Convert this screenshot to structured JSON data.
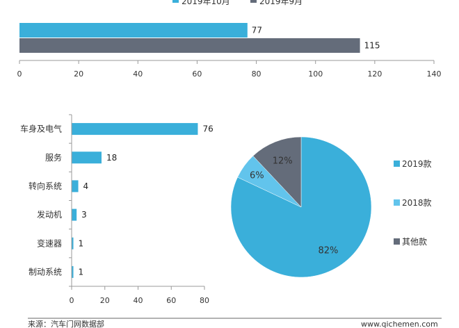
{
  "chart_data": [
    {
      "type": "bar",
      "orientation": "horizontal",
      "title": "",
      "series": [
        {
          "name": "2019年10月",
          "values": [
            77
          ],
          "color": "#3aafda"
        },
        {
          "name": "2019年9月",
          "values": [
            115
          ],
          "color": "#646c7a"
        }
      ],
      "xlim": [
        0,
        140
      ],
      "xticks": [
        0,
        20,
        40,
        60,
        80,
        100,
        120,
        140
      ],
      "legend": "top",
      "grid": false
    },
    {
      "type": "bar",
      "orientation": "horizontal",
      "categories": [
        "车身及电气",
        "服务",
        "转向系统",
        "发动机",
        "变速器",
        "制动系统"
      ],
      "series": [
        {
          "name": "",
          "values": [
            76,
            18,
            4,
            3,
            1,
            1
          ],
          "color": "#3aafda"
        }
      ],
      "xlim": [
        0,
        80
      ],
      "xticks": [
        0,
        20,
        40,
        60,
        80
      ],
      "grid": false
    },
    {
      "type": "pie",
      "slices": [
        {
          "label": "2019款",
          "value": 82,
          "text": "82%",
          "color": "#3aafda"
        },
        {
          "label": "2018款",
          "value": 6,
          "text": "6%",
          "color": "#62c4ec"
        },
        {
          "label": "其他款",
          "value": 12,
          "text": "12%",
          "color": "#646c7a"
        }
      ],
      "legend": "right"
    }
  ],
  "footer": {
    "source": "来源：汽车门网数据部",
    "website": "www.qichemen.com"
  }
}
